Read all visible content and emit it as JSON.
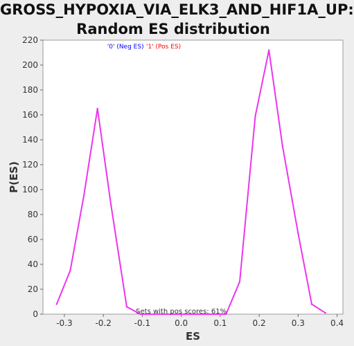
{
  "chart_data": {
    "type": "line",
    "title_line1": "GROSS_HYPOXIA_VIA_ELK3_AND_HIF1A_UP:",
    "title_line2": "Random ES distribution",
    "xlabel": "ES",
    "ylabel": "P(ES)",
    "xlim": [
      -0.355,
      0.415
    ],
    "ylim": [
      0,
      220
    ],
    "x_ticks": [
      -0.3,
      -0.2,
      -0.1,
      0.0,
      0.1,
      0.2,
      0.3,
      0.4
    ],
    "x_tick_labels": [
      "-0.3",
      "-0.2",
      "-0.1",
      "0.0",
      "0.1",
      "0.2",
      "0.3",
      "0.4"
    ],
    "y_ticks": [
      0,
      20,
      40,
      60,
      80,
      100,
      120,
      140,
      160,
      180,
      200,
      220
    ],
    "y_tick_labels": [
      "0",
      "20",
      "40",
      "60",
      "80",
      "100",
      "120",
      "140",
      "160",
      "180",
      "200",
      "220"
    ],
    "legend": [
      {
        "label": "'0' (Neg ES)",
        "color": "#0000ff"
      },
      {
        "label": "'1' (Pos ES)",
        "color": "#ff0000"
      }
    ],
    "annotation": "Sets with pos scores: 61%",
    "series": [
      {
        "name": "Random ES",
        "color": "#ee33ee",
        "x": [
          -0.32,
          -0.285,
          -0.25,
          -0.215,
          -0.18,
          -0.14,
          -0.105,
          0.115,
          0.15,
          0.19,
          0.225,
          0.26,
          0.3,
          0.335,
          0.37
        ],
        "y": [
          8,
          35,
          95,
          165,
          87,
          6,
          0,
          0,
          26,
          159,
          212,
          135,
          65,
          8,
          1
        ]
      }
    ]
  }
}
